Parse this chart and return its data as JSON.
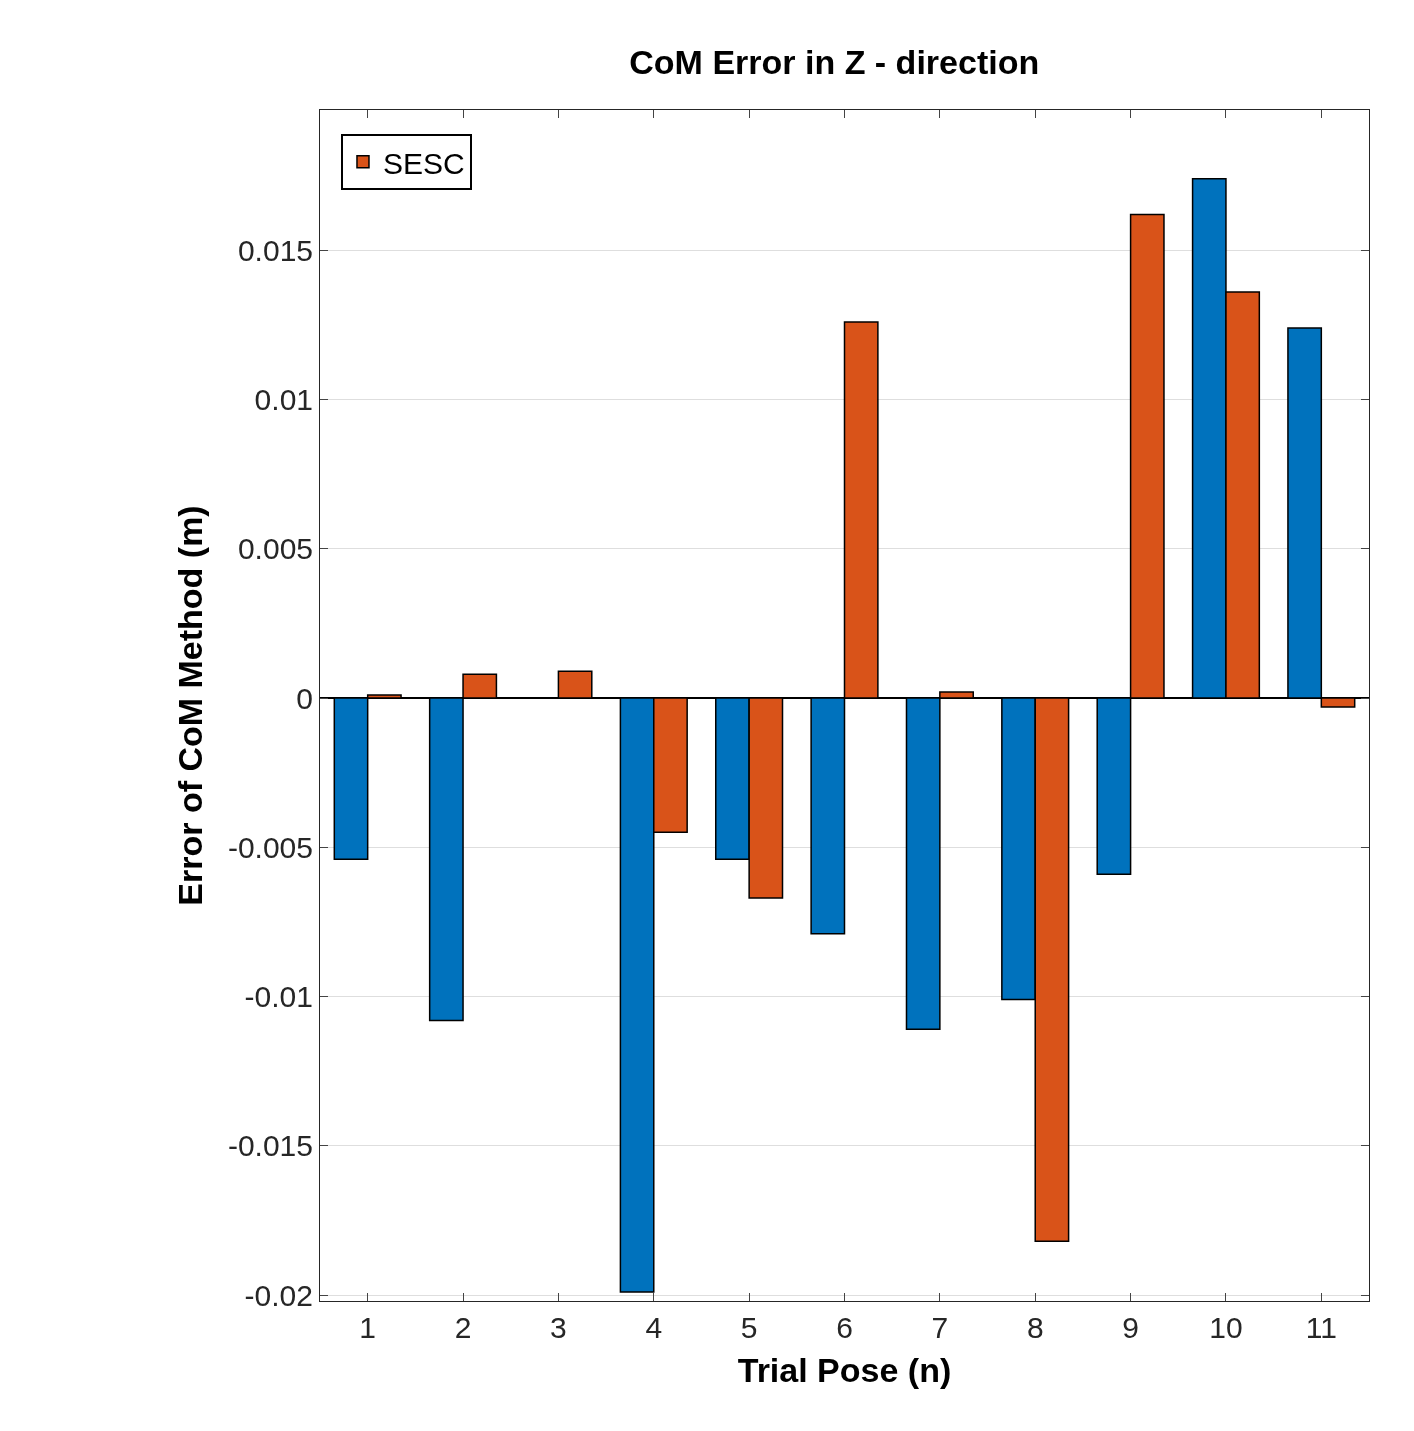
{
  "chart_data": {
    "type": "bar",
    "title": "CoM Error in Z - direction",
    "xlabel": "Trial Pose (n)",
    "ylabel": "Error of CoM Method (m)",
    "categories": [
      "1",
      "2",
      "3",
      "4",
      "5",
      "6",
      "7",
      "8",
      "9",
      "10",
      "11"
    ],
    "series": [
      {
        "color": "#0072bd",
        "values": [
          -0.0054,
          -0.0108,
          null,
          -0.0199,
          -0.0054,
          -0.0079,
          -0.0111,
          -0.0101,
          -0.0059,
          0.0174,
          0.0124
        ]
      },
      {
        "name": "SESC",
        "color": "#d95319",
        "values": [
          0.0001,
          0.0008,
          0.0009,
          -0.0045,
          -0.0067,
          0.0126,
          0.0002,
          -0.0182,
          0.0162,
          0.0136,
          -0.0003
        ]
      }
    ],
    "ylim": [
      -0.0202,
      0.0197
    ],
    "yticks": [
      {
        "value": -0.02,
        "label": "-0.02"
      },
      {
        "value": -0.015,
        "label": "-0.015"
      },
      {
        "value": -0.01,
        "label": "-0.01"
      },
      {
        "value": -0.005,
        "label": "-0.005"
      },
      0,
      {
        "value": 0.005,
        "label": "0.005"
      },
      {
        "value": 0.01,
        "label": "0.01"
      },
      {
        "value": 0.015,
        "label": "0.015"
      }
    ],
    "grid": "y",
    "legend": "top left"
  }
}
